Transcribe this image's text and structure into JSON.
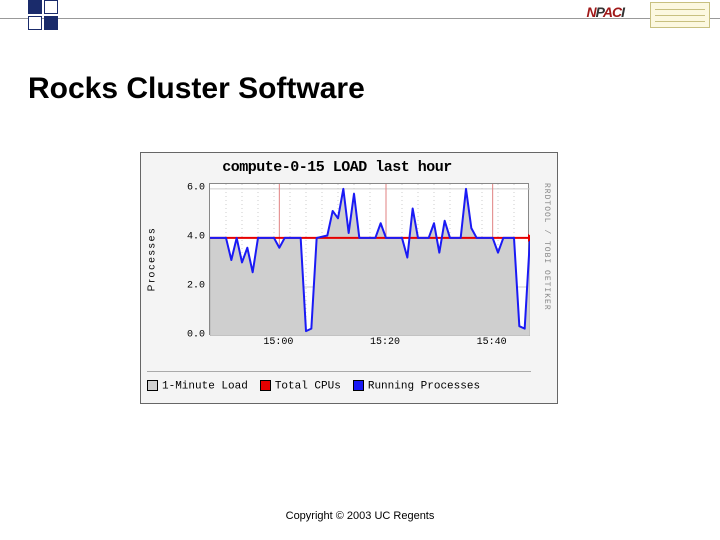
{
  "header": {
    "logo_text": "NPACI",
    "title": "Rocks Cluster Software"
  },
  "chart": {
    "type": "line-area",
    "title": "compute-0-15 LOAD last hour",
    "ylabel": "Processes",
    "side_credit": "RRDTOOL / TOBI OETIKER",
    "background_color": "#f4f4f4",
    "plot_bg": "#ffffff",
    "grid_color": "#cccccc",
    "ylim": [
      0,
      6.2
    ],
    "yticks": [
      0.0,
      2.0,
      4.0,
      6.0
    ],
    "ytick_labels": [
      "0.0",
      "2.0",
      "4.0",
      "6.0"
    ],
    "xlim": [
      0,
      60
    ],
    "xticks": [
      13,
      33,
      53
    ],
    "xtick_labels": [
      "15:00",
      "15:20",
      "15:40"
    ],
    "series": {
      "one_minute_load": {
        "label": "1-Minute Load",
        "type": "area",
        "color": "#cfcfcf",
        "stroke": "#9a9a9a",
        "data": [
          [
            0,
            4.0
          ],
          [
            3,
            4.0
          ],
          [
            4,
            3.1
          ],
          [
            5,
            4.0
          ],
          [
            6,
            3.0
          ],
          [
            7,
            3.6
          ],
          [
            8,
            2.6
          ],
          [
            9,
            4.0
          ],
          [
            12,
            4.0
          ],
          [
            13,
            3.6
          ],
          [
            14,
            4.0
          ],
          [
            17,
            4.0
          ],
          [
            18,
            0.2
          ],
          [
            19,
            0.3
          ],
          [
            20,
            4.0
          ],
          [
            22,
            4.1
          ],
          [
            23,
            5.1
          ],
          [
            24,
            4.8
          ],
          [
            25,
            6.0
          ],
          [
            26,
            4.2
          ],
          [
            27,
            5.8
          ],
          [
            28,
            4.0
          ],
          [
            31,
            4.0
          ],
          [
            32,
            4.6
          ],
          [
            33,
            4.0
          ],
          [
            36,
            4.0
          ],
          [
            37,
            3.2
          ],
          [
            38,
            5.2
          ],
          [
            39,
            4.0
          ],
          [
            41,
            4.0
          ],
          [
            42,
            4.6
          ],
          [
            43,
            3.4
          ],
          [
            44,
            4.7
          ],
          [
            45,
            4.0
          ],
          [
            47,
            4.0
          ],
          [
            48,
            6.0
          ],
          [
            49,
            4.4
          ],
          [
            50,
            4.0
          ],
          [
            53,
            4.0
          ],
          [
            54,
            3.4
          ],
          [
            55,
            4.0
          ],
          [
            57,
            4.0
          ],
          [
            58,
            0.4
          ],
          [
            59,
            0.3
          ],
          [
            60,
            4.0
          ]
        ]
      },
      "total_cpus": {
        "label": "Total CPUs",
        "type": "line",
        "color": "#e60000",
        "value": 4.0
      },
      "running_processes": {
        "label": "Running Processes",
        "type": "line",
        "color": "#1a1af5",
        "data": [
          [
            0,
            4.0
          ],
          [
            3,
            4.0
          ],
          [
            4,
            3.1
          ],
          [
            5,
            4.0
          ],
          [
            6,
            3.0
          ],
          [
            7,
            3.6
          ],
          [
            8,
            2.6
          ],
          [
            9,
            4.0
          ],
          [
            12,
            4.0
          ],
          [
            13,
            3.6
          ],
          [
            14,
            4.0
          ],
          [
            17,
            4.0
          ],
          [
            18,
            0.2
          ],
          [
            19,
            0.3
          ],
          [
            20,
            4.0
          ],
          [
            22,
            4.1
          ],
          [
            23,
            5.1
          ],
          [
            24,
            4.8
          ],
          [
            25,
            6.0
          ],
          [
            26,
            4.2
          ],
          [
            27,
            5.8
          ],
          [
            28,
            4.0
          ],
          [
            31,
            4.0
          ],
          [
            32,
            4.6
          ],
          [
            33,
            4.0
          ],
          [
            36,
            4.0
          ],
          [
            37,
            3.2
          ],
          [
            38,
            5.2
          ],
          [
            39,
            4.0
          ],
          [
            41,
            4.0
          ],
          [
            42,
            4.6
          ],
          [
            43,
            3.4
          ],
          [
            44,
            4.7
          ],
          [
            45,
            4.0
          ],
          [
            47,
            4.0
          ],
          [
            48,
            6.0
          ],
          [
            49,
            4.4
          ],
          [
            50,
            4.0
          ],
          [
            53,
            4.0
          ],
          [
            54,
            3.4
          ],
          [
            55,
            4.0
          ],
          [
            57,
            4.0
          ],
          [
            58,
            0.4
          ],
          [
            59,
            0.3
          ],
          [
            60,
            4.0
          ]
        ]
      }
    },
    "legend": [
      {
        "swatch": "#cfcfcf",
        "label": "1-Minute Load"
      },
      {
        "swatch": "#e60000",
        "label": "Total CPUs"
      },
      {
        "swatch": "#1a1af5",
        "label": "Running Processes"
      }
    ]
  },
  "footer": {
    "copyright": "Copyright © 2003 UC Regents"
  }
}
